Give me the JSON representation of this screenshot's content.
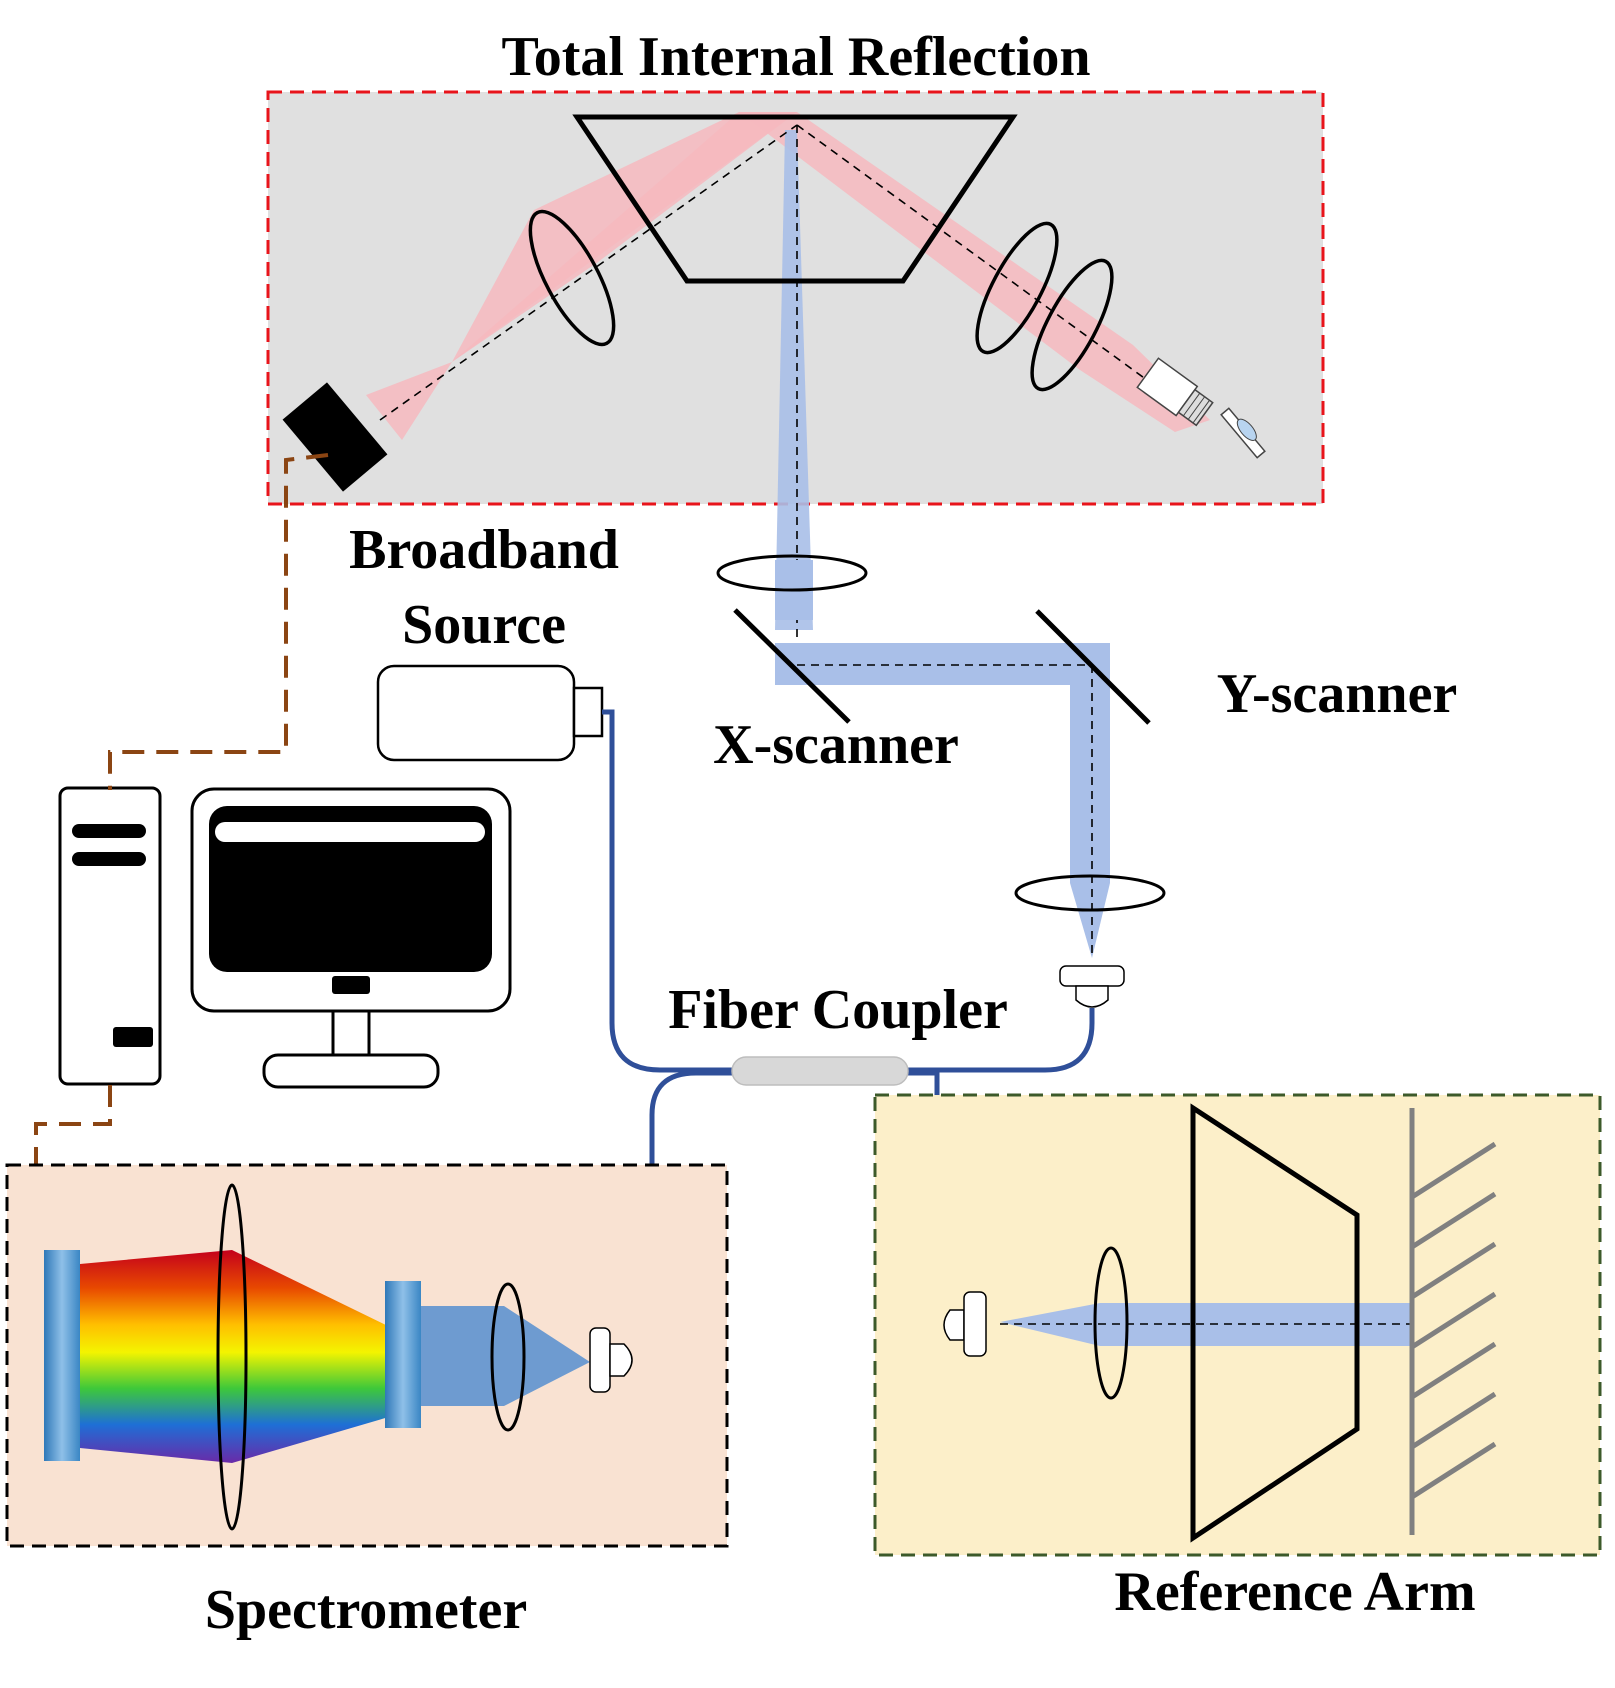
{
  "labels": {
    "tir": "Total Internal Reflection",
    "source_line1": "Broadband",
    "source_line2": "Source",
    "x_scanner": "X-scanner",
    "y_scanner": "Y-scanner",
    "fiber_coupler": "Fiber Coupler",
    "spectrometer": "Spectrometer",
    "reference_arm": "Reference Arm"
  },
  "colors": {
    "tir_box_fill": "#e0e0e0",
    "tir_box_border": "#e8141b",
    "spectrometer_box_fill": "#f9e2d2",
    "reference_box_fill": "#fcefc9",
    "reference_box_border": "#3c5a2a",
    "sample_beam": "#a9bfe8",
    "source_beam": "#f6b8be",
    "fiber": "#2f4f99",
    "control_cable": "#8b4513",
    "mirror_hatch": "#808080"
  }
}
